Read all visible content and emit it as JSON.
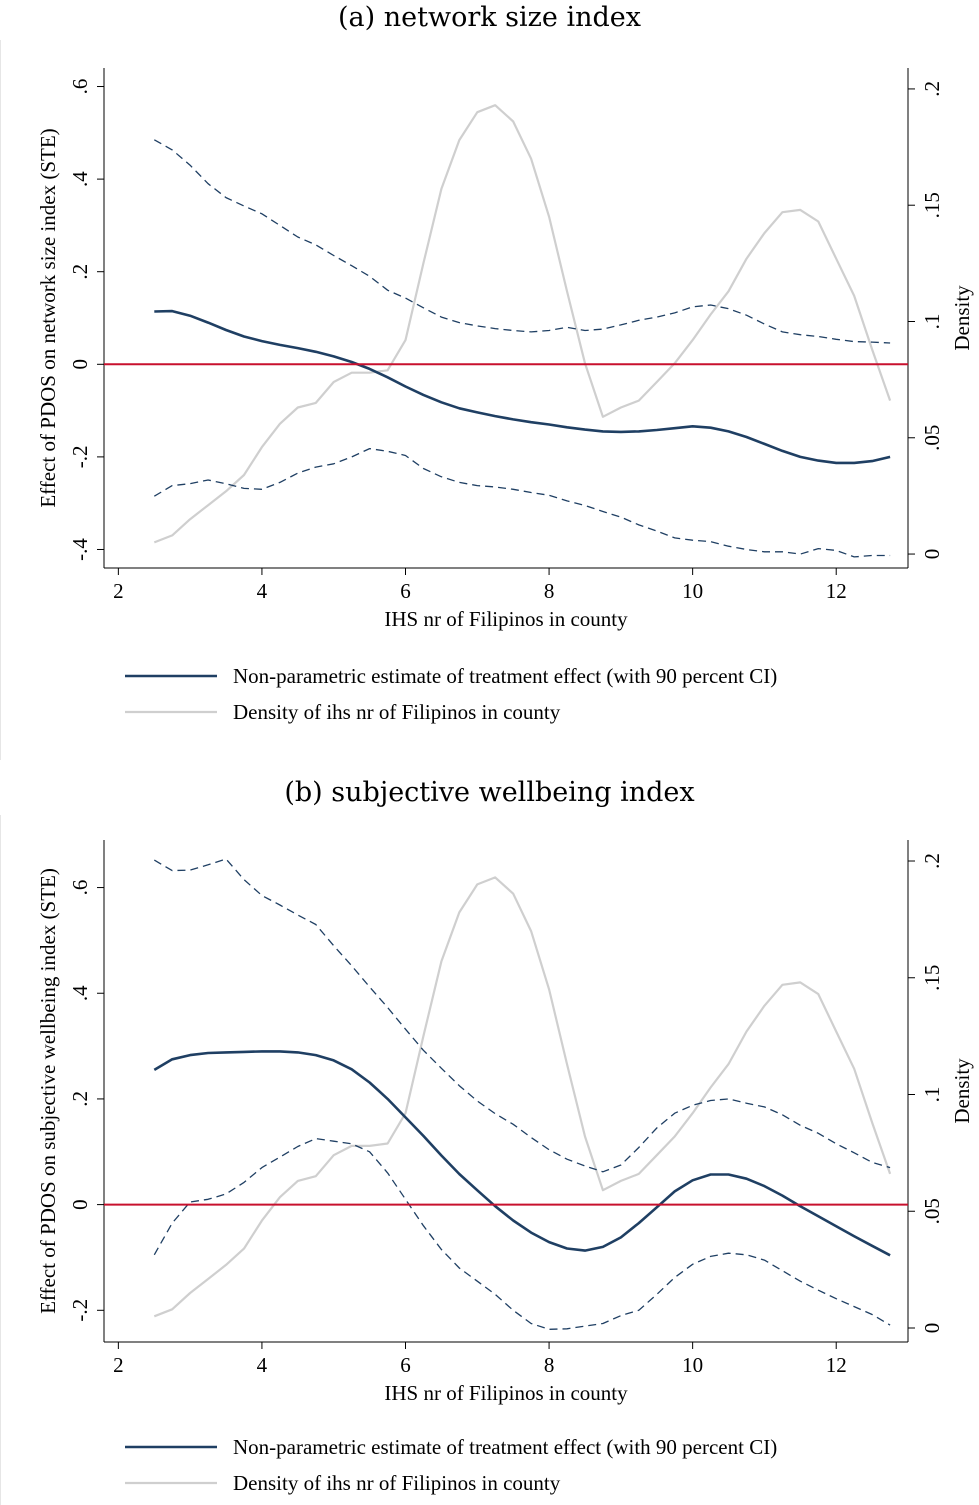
{
  "chart_data": [
    {
      "type": "line",
      "title": "(a) network size index",
      "xlabel": "IHS nr of Filipinos in county",
      "ylabel": "Effect of PDOS on network size index (STE)",
      "y2label": "Density",
      "xlim": [
        1.8,
        13.0
      ],
      "ylim": [
        -0.44,
        0.64
      ],
      "y2lim": [
        -0.006,
        0.209
      ],
      "xticks": [
        "2",
        "4",
        "6",
        "8",
        "10",
        "12"
      ],
      "yticks": [
        "-.4",
        "-.2",
        "0",
        ".2",
        ".4",
        ".6"
      ],
      "y2ticks": [
        "0",
        ".05",
        ".1",
        ".15",
        ".2"
      ],
      "zero_line_color": "#c8102e",
      "series": [
        {
          "name": "Non-parametric estimate of treatment effect (with 90 percent CI)",
          "color": "#1f3f63",
          "style": "solid",
          "axis": "left",
          "x": [
            2.5,
            2.75,
            3.0,
            3.25,
            3.5,
            3.75,
            4.0,
            4.25,
            4.5,
            4.75,
            5.0,
            5.25,
            5.5,
            5.75,
            6.0,
            6.25,
            6.5,
            6.75,
            7.0,
            7.25,
            7.5,
            7.75,
            8.0,
            8.25,
            8.5,
            8.75,
            9.0,
            9.25,
            9.5,
            9.75,
            10.0,
            10.25,
            10.5,
            10.75,
            11.0,
            11.25,
            11.5,
            11.75,
            12.0,
            12.25,
            12.5,
            12.75
          ],
          "y": [
            0.114,
            0.115,
            0.105,
            0.09,
            0.074,
            0.06,
            0.05,
            0.042,
            0.035,
            0.027,
            0.017,
            0.005,
            -0.01,
            -0.028,
            -0.048,
            -0.066,
            -0.082,
            -0.095,
            -0.104,
            -0.112,
            -0.119,
            -0.125,
            -0.13,
            -0.136,
            -0.141,
            -0.145,
            -0.146,
            -0.145,
            -0.142,
            -0.138,
            -0.134,
            -0.137,
            -0.145,
            -0.157,
            -0.172,
            -0.187,
            -0.2,
            -0.208,
            -0.213,
            -0.213,
            -0.209,
            -0.2
          ]
        },
        {
          "name": "",
          "role": "upper-ci",
          "color": "#1f3f63",
          "style": "dashed",
          "axis": "left",
          "x": [
            2.5,
            2.75,
            3.0,
            3.25,
            3.5,
            3.75,
            4.0,
            4.25,
            4.5,
            4.75,
            5.0,
            5.25,
            5.5,
            5.75,
            6.0,
            6.25,
            6.5,
            6.75,
            7.0,
            7.25,
            7.5,
            7.75,
            8.0,
            8.25,
            8.5,
            8.75,
            9.0,
            9.25,
            9.5,
            9.75,
            10.0,
            10.25,
            10.5,
            10.75,
            11.0,
            11.25,
            11.5,
            11.75,
            12.0,
            12.25,
            12.5,
            12.75
          ],
          "y": [
            0.485,
            0.463,
            0.43,
            0.39,
            0.36,
            0.342,
            0.325,
            0.3,
            0.275,
            0.258,
            0.235,
            0.213,
            0.19,
            0.16,
            0.143,
            0.122,
            0.102,
            0.09,
            0.083,
            0.077,
            0.073,
            0.07,
            0.073,
            0.08,
            0.073,
            0.076,
            0.085,
            0.095,
            0.102,
            0.111,
            0.124,
            0.128,
            0.12,
            0.106,
            0.087,
            0.07,
            0.064,
            0.06,
            0.054,
            0.049,
            0.048,
            0.046
          ]
        },
        {
          "name": "",
          "role": "lower-ci",
          "color": "#1f3f63",
          "style": "dashed",
          "axis": "left",
          "x": [
            2.5,
            2.75,
            3.0,
            3.25,
            3.5,
            3.75,
            4.0,
            4.25,
            4.5,
            4.75,
            5.0,
            5.25,
            5.5,
            5.75,
            6.0,
            6.25,
            6.5,
            6.75,
            7.0,
            7.25,
            7.5,
            7.75,
            8.0,
            8.25,
            8.5,
            8.75,
            9.0,
            9.25,
            9.5,
            9.75,
            10.0,
            10.25,
            10.5,
            10.75,
            11.0,
            11.25,
            11.5,
            11.75,
            12.0,
            12.25,
            12.5,
            12.75
          ],
          "y": [
            -0.285,
            -0.262,
            -0.258,
            -0.25,
            -0.258,
            -0.268,
            -0.27,
            -0.255,
            -0.235,
            -0.222,
            -0.215,
            -0.2,
            -0.182,
            -0.188,
            -0.197,
            -0.225,
            -0.243,
            -0.255,
            -0.262,
            -0.265,
            -0.27,
            -0.277,
            -0.283,
            -0.295,
            -0.305,
            -0.318,
            -0.33,
            -0.347,
            -0.36,
            -0.375,
            -0.38,
            -0.383,
            -0.393,
            -0.4,
            -0.405,
            -0.405,
            -0.41,
            -0.398,
            -0.402,
            -0.416,
            -0.413,
            -0.413
          ]
        },
        {
          "name": "Density of ihs nr of Filipinos in county",
          "color": "#cfcfcf",
          "style": "solid",
          "axis": "right",
          "x": [
            2.5,
            2.75,
            3.0,
            3.25,
            3.5,
            3.75,
            4.0,
            4.25,
            4.5,
            4.75,
            5.0,
            5.25,
            5.5,
            5.75,
            6.0,
            6.25,
            6.5,
            6.75,
            7.0,
            7.25,
            7.5,
            7.75,
            8.0,
            8.25,
            8.5,
            8.75,
            9.0,
            9.25,
            9.5,
            9.75,
            10.0,
            10.25,
            10.5,
            10.75,
            11.0,
            11.25,
            11.5,
            11.75,
            12.0,
            12.25,
            12.5,
            12.75
          ],
          "y": [
            0.005,
            0.008,
            0.015,
            0.021,
            0.027,
            0.034,
            0.046,
            0.056,
            0.063,
            0.065,
            0.074,
            0.078,
            0.078,
            0.079,
            0.092,
            0.125,
            0.157,
            0.178,
            0.19,
            0.193,
            0.186,
            0.17,
            0.145,
            0.113,
            0.082,
            0.059,
            0.063,
            0.066,
            0.074,
            0.082,
            0.092,
            0.103,
            0.113,
            0.127,
            0.138,
            0.147,
            0.148,
            0.143,
            0.127,
            0.111,
            0.088,
            0.066
          ]
        }
      ],
      "legend": {
        "position": "bottom"
      }
    },
    {
      "type": "line",
      "title": "(b) subjective wellbeing index",
      "xlabel": "IHS nr of Filipinos in county",
      "ylabel": "Effect of PDOS on subjective wellbeing index (STE)",
      "y2label": "Density",
      "xlim": [
        1.8,
        13.0
      ],
      "ylim": [
        -0.26,
        0.69
      ],
      "y2lim": [
        -0.006,
        0.209
      ],
      "xticks": [
        "2",
        "4",
        "6",
        "8",
        "10",
        "12"
      ],
      "yticks": [
        "-.2",
        "0",
        ".2",
        ".4",
        ".6"
      ],
      "y2ticks": [
        "0",
        ".05",
        ".1",
        ".15",
        ".2"
      ],
      "zero_line_color": "#c8102e",
      "series": [
        {
          "name": "Non-parametric estimate of treatment effect (with 90 percent CI)",
          "color": "#1f3f63",
          "style": "solid",
          "axis": "left",
          "x": [
            2.5,
            2.75,
            3.0,
            3.25,
            3.5,
            3.75,
            4.0,
            4.25,
            4.5,
            4.75,
            5.0,
            5.25,
            5.5,
            5.75,
            6.0,
            6.25,
            6.5,
            6.75,
            7.0,
            7.25,
            7.5,
            7.75,
            8.0,
            8.25,
            8.5,
            8.75,
            9.0,
            9.25,
            9.5,
            9.75,
            10.0,
            10.25,
            10.5,
            10.75,
            11.0,
            11.25,
            11.5,
            11.75,
            12.0,
            12.25,
            12.5,
            12.75
          ],
          "y": [
            0.255,
            0.275,
            0.283,
            0.287,
            0.288,
            0.289,
            0.29,
            0.29,
            0.288,
            0.283,
            0.273,
            0.256,
            0.231,
            0.2,
            0.165,
            0.13,
            0.093,
            0.058,
            0.027,
            -0.003,
            -0.03,
            -0.053,
            -0.071,
            -0.083,
            -0.087,
            -0.08,
            -0.062,
            -0.035,
            -0.005,
            0.025,
            0.046,
            0.057,
            0.057,
            0.049,
            0.035,
            0.017,
            -0.003,
            -0.022,
            -0.041,
            -0.06,
            -0.078,
            -0.096
          ]
        },
        {
          "name": "",
          "role": "upper-ci",
          "color": "#1f3f63",
          "style": "dashed",
          "axis": "left",
          "x": [
            2.5,
            2.75,
            3.0,
            3.25,
            3.5,
            3.75,
            4.0,
            4.25,
            4.5,
            4.75,
            5.0,
            5.25,
            5.5,
            5.75,
            6.0,
            6.25,
            6.5,
            6.75,
            7.0,
            7.25,
            7.5,
            7.75,
            8.0,
            8.25,
            8.5,
            8.75,
            9.0,
            9.25,
            9.5,
            9.75,
            10.0,
            10.25,
            10.5,
            10.75,
            11.0,
            11.25,
            11.5,
            11.75,
            12.0,
            12.25,
            12.5,
            12.75
          ],
          "y": [
            0.652,
            0.632,
            0.633,
            0.643,
            0.654,
            0.615,
            0.585,
            0.567,
            0.548,
            0.53,
            0.49,
            0.452,
            0.412,
            0.373,
            0.332,
            0.292,
            0.258,
            0.225,
            0.196,
            0.172,
            0.152,
            0.127,
            0.104,
            0.086,
            0.073,
            0.062,
            0.075,
            0.108,
            0.145,
            0.173,
            0.188,
            0.197,
            0.2,
            0.192,
            0.185,
            0.17,
            0.15,
            0.135,
            0.115,
            0.098,
            0.08,
            0.07
          ]
        },
        {
          "name": "",
          "role": "lower-ci",
          "color": "#1f3f63",
          "style": "dashed",
          "axis": "left",
          "x": [
            2.5,
            2.75,
            3.0,
            3.25,
            3.5,
            3.75,
            4.0,
            4.25,
            4.5,
            4.75,
            5.0,
            5.25,
            5.5,
            5.75,
            6.0,
            6.25,
            6.5,
            6.75,
            7.0,
            7.25,
            7.5,
            7.75,
            8.0,
            8.25,
            8.5,
            8.75,
            9.0,
            9.25,
            9.5,
            9.75,
            10.0,
            10.25,
            10.5,
            10.75,
            11.0,
            11.25,
            11.5,
            11.75,
            12.0,
            12.25,
            12.5,
            12.75
          ],
          "y": [
            -0.095,
            -0.035,
            0.005,
            0.01,
            0.02,
            0.042,
            0.07,
            0.09,
            0.11,
            0.125,
            0.12,
            0.115,
            0.1,
            0.06,
            0.01,
            -0.04,
            -0.085,
            -0.12,
            -0.145,
            -0.17,
            -0.2,
            -0.225,
            -0.236,
            -0.235,
            -0.23,
            -0.225,
            -0.21,
            -0.2,
            -0.17,
            -0.138,
            -0.113,
            -0.098,
            -0.092,
            -0.095,
            -0.105,
            -0.125,
            -0.145,
            -0.162,
            -0.178,
            -0.193,
            -0.208,
            -0.228
          ]
        },
        {
          "name": "Density of ihs nr of Filipinos in county",
          "color": "#cfcfcf",
          "style": "solid",
          "axis": "right",
          "x": [
            2.5,
            2.75,
            3.0,
            3.25,
            3.5,
            3.75,
            4.0,
            4.25,
            4.5,
            4.75,
            5.0,
            5.25,
            5.5,
            5.75,
            6.0,
            6.25,
            6.5,
            6.75,
            7.0,
            7.25,
            7.5,
            7.75,
            8.0,
            8.25,
            8.5,
            8.75,
            9.0,
            9.25,
            9.5,
            9.75,
            10.0,
            10.25,
            10.5,
            10.75,
            11.0,
            11.25,
            11.5,
            11.75,
            12.0,
            12.25,
            12.5,
            12.75
          ],
          "y": [
            0.005,
            0.008,
            0.015,
            0.021,
            0.027,
            0.034,
            0.046,
            0.056,
            0.063,
            0.065,
            0.074,
            0.078,
            0.078,
            0.079,
            0.092,
            0.125,
            0.157,
            0.178,
            0.19,
            0.193,
            0.186,
            0.17,
            0.145,
            0.113,
            0.082,
            0.059,
            0.063,
            0.066,
            0.074,
            0.082,
            0.092,
            0.103,
            0.113,
            0.127,
            0.138,
            0.147,
            0.148,
            0.143,
            0.127,
            0.111,
            0.088,
            0.066
          ]
        }
      ],
      "legend": {
        "position": "bottom"
      }
    }
  ]
}
